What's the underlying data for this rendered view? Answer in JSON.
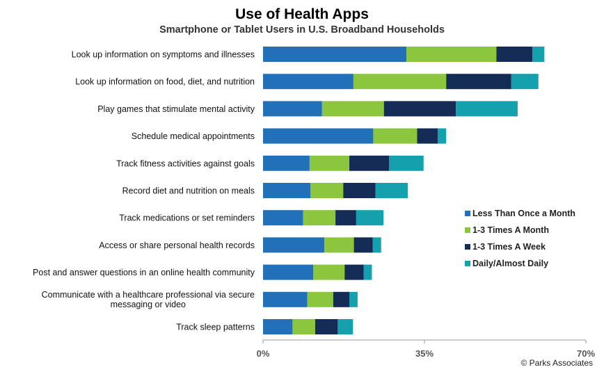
{
  "chart_data": {
    "type": "bar",
    "orientation": "horizontal",
    "stacked": true,
    "title": "Use of Health Apps",
    "subtitle": "Smartphone or Tablet Users in U.S. Broadband Households",
    "categories": [
      "Look up information on symptoms and illnesses",
      "Look up information on food, diet, and nutrition",
      "Play games that stimulate mental activity",
      "Schedule medical appointments",
      "Track fitness activities against goals",
      "Record diet and nutrition on meals",
      "Track medications or set reminders",
      "Access or share personal health records",
      "Post and answer questions in an online health community",
      "Communicate with a healthcare professional via secure messaging or video",
      "Track sleep patterns"
    ],
    "series": [
      {
        "name": "Less Than Once a Month",
        "color": "#2271b8",
        "values": [
          31.1,
          19.6,
          12.8,
          23.9,
          10.1,
          10.3,
          8.7,
          13.3,
          10.9,
          9.6,
          6.4
        ]
      },
      {
        "name": "1-3 Times A Month",
        "color": "#8cc63f",
        "values": [
          19.5,
          20.1,
          13.4,
          9.5,
          8.6,
          7.1,
          7.0,
          6.4,
          6.8,
          5.6,
          4.9
        ]
      },
      {
        "name": "1-3 Times A Week",
        "color": "#152d56",
        "values": [
          7.8,
          14.1,
          15.6,
          4.5,
          8.6,
          7.0,
          4.5,
          4.1,
          4.1,
          3.5,
          4.9
        ]
      },
      {
        "name": "Daily/Almost Daily",
        "color": "#14a0ad",
        "values": [
          2.6,
          5.9,
          13.4,
          1.8,
          7.5,
          7.0,
          5.9,
          1.8,
          1.8,
          1.8,
          3.3
        ]
      }
    ],
    "xlim": [
      0,
      70
    ],
    "ticks": [
      "0%",
      "35%",
      "70%"
    ],
    "tick_values": [
      0,
      35,
      70
    ],
    "grid": false,
    "legend_position": "right-middle",
    "credit": "© Parks Associates"
  }
}
